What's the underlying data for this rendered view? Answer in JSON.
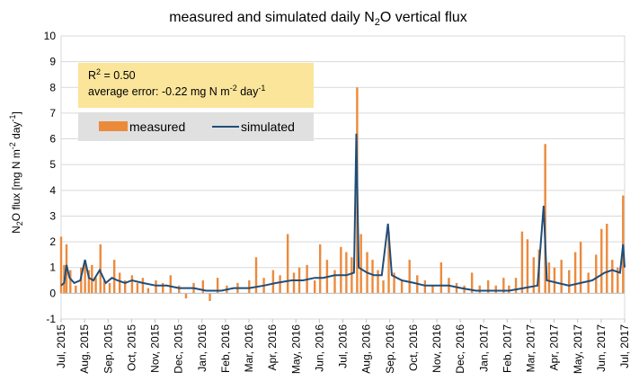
{
  "chart_data": {
    "type": "bar+line",
    "title": "measured and simulated daily N₂O vertical flux",
    "ylabel": "N₂O flux [mg N m⁻² day⁻¹]",
    "xlabel": "",
    "ylim": [
      -1,
      10
    ],
    "yticks": [
      -1,
      0,
      1,
      2,
      3,
      4,
      5,
      6,
      7,
      8,
      9,
      10
    ],
    "xlim": [
      "2015-07-01",
      "2017-07-01"
    ],
    "xtick_labels": [
      "Jul, 2015",
      "Aug, 2015",
      "Sep, 2015",
      "Oct, 2015",
      "Nov, 2015",
      "Dec, 2015",
      "Jan, 2016",
      "Feb, 2016",
      "Mar, 2016",
      "Apr, 2016",
      "May, 2016",
      "Jun, 2016",
      "Jul, 2016",
      "Aug, 2016",
      "Sep, 2016",
      "Oct, 2016",
      "Nov, 2016",
      "Dec, 2016",
      "Jan, 2017",
      "Feb, 2017",
      "Mar, 2017",
      "Apr, 2017",
      "May, 2017",
      "Jun, 2017",
      "Jul, 2017"
    ],
    "grid": "horizontal",
    "annotation": {
      "r2_label": "R² = 0.50",
      "error_label": "average error: -0.22 mg N m⁻² day⁻¹",
      "background": "#fbe59a"
    },
    "legend": {
      "placement": "top-left",
      "background": "#e0e0e0"
    },
    "series": [
      {
        "name": "measured",
        "kind": "bar",
        "color": "#ec8a3c",
        "points": [
          [
            "2015-07-01",
            2.2
          ],
          [
            "2015-07-05",
            1.1
          ],
          [
            "2015-07-08",
            1.9
          ],
          [
            "2015-07-13",
            0.9
          ],
          [
            "2015-07-20",
            0.3
          ],
          [
            "2015-07-27",
            1.0
          ],
          [
            "2015-08-01",
            1.2
          ],
          [
            "2015-08-06",
            0.9
          ],
          [
            "2015-08-10",
            1.1
          ],
          [
            "2015-08-15",
            0.6
          ],
          [
            "2015-08-21",
            1.9
          ],
          [
            "2015-08-26",
            0.5
          ],
          [
            "2015-09-02",
            0.4
          ],
          [
            "2015-09-08",
            1.3
          ],
          [
            "2015-09-15",
            0.8
          ],
          [
            "2015-09-22",
            0.5
          ],
          [
            "2015-10-01",
            0.7
          ],
          [
            "2015-10-08",
            0.4
          ],
          [
            "2015-10-15",
            0.6
          ],
          [
            "2015-10-22",
            0.2
          ],
          [
            "2015-11-01",
            0.5
          ],
          [
            "2015-11-10",
            0.4
          ],
          [
            "2015-11-20",
            0.7
          ],
          [
            "2015-12-01",
            0.3
          ],
          [
            "2015-12-10",
            -0.2
          ],
          [
            "2015-12-20",
            0.4
          ],
          [
            "2016-01-01",
            0.5
          ],
          [
            "2016-01-10",
            -0.3
          ],
          [
            "2016-01-20",
            0.6
          ],
          [
            "2016-02-01",
            0.3
          ],
          [
            "2016-02-15",
            0.4
          ],
          [
            "2016-03-01",
            0.5
          ],
          [
            "2016-03-10",
            1.4
          ],
          [
            "2016-03-20",
            0.6
          ],
          [
            "2016-04-01",
            0.9
          ],
          [
            "2016-04-10",
            0.7
          ],
          [
            "2016-04-20",
            2.3
          ],
          [
            "2016-04-28",
            0.8
          ],
          [
            "2016-05-05",
            1.0
          ],
          [
            "2016-05-15",
            1.1
          ],
          [
            "2016-05-25",
            0.5
          ],
          [
            "2016-06-01",
            1.9
          ],
          [
            "2016-06-10",
            1.3
          ],
          [
            "2016-06-20",
            0.9
          ],
          [
            "2016-06-28",
            1.8
          ],
          [
            "2016-07-05",
            1.6
          ],
          [
            "2016-07-12",
            1.4
          ],
          [
            "2016-07-19",
            8.0
          ],
          [
            "2016-07-24",
            2.3
          ],
          [
            "2016-08-01",
            1.6
          ],
          [
            "2016-08-08",
            1.3
          ],
          [
            "2016-08-15",
            0.9
          ],
          [
            "2016-08-22",
            0.5
          ],
          [
            "2016-08-29",
            2.4
          ],
          [
            "2016-09-05",
            0.8
          ],
          [
            "2016-09-15",
            0.5
          ],
          [
            "2016-09-25",
            1.3
          ],
          [
            "2016-10-05",
            0.7
          ],
          [
            "2016-10-15",
            0.5
          ],
          [
            "2016-10-25",
            0.3
          ],
          [
            "2016-11-05",
            1.2
          ],
          [
            "2016-11-15",
            0.6
          ],
          [
            "2016-11-25",
            0.4
          ],
          [
            "2016-12-05",
            0.3
          ],
          [
            "2016-12-15",
            0.8
          ],
          [
            "2016-12-25",
            0.3
          ],
          [
            "2017-01-05",
            0.5
          ],
          [
            "2017-01-15",
            0.3
          ],
          [
            "2017-01-25",
            0.6
          ],
          [
            "2017-02-01",
            0.3
          ],
          [
            "2017-02-10",
            0.6
          ],
          [
            "2017-02-18",
            2.4
          ],
          [
            "2017-02-25",
            2.1
          ],
          [
            "2017-03-05",
            1.4
          ],
          [
            "2017-03-12",
            1.7
          ],
          [
            "2017-03-20",
            5.8
          ],
          [
            "2017-03-25",
            1.2
          ],
          [
            "2017-04-01",
            1.0
          ],
          [
            "2017-04-10",
            1.3
          ],
          [
            "2017-04-20",
            0.9
          ],
          [
            "2017-04-28",
            1.6
          ],
          [
            "2017-05-05",
            2.0
          ],
          [
            "2017-05-15",
            0.8
          ],
          [
            "2017-05-25",
            1.5
          ],
          [
            "2017-06-01",
            2.5
          ],
          [
            "2017-06-08",
            2.7
          ],
          [
            "2017-06-15",
            1.3
          ],
          [
            "2017-06-22",
            1.0
          ],
          [
            "2017-06-29",
            3.8
          ]
        ]
      },
      {
        "name": "simulated",
        "kind": "line",
        "color": "#1f4e79",
        "points": [
          [
            "2015-07-01",
            0.3
          ],
          [
            "2015-07-05",
            0.4
          ],
          [
            "2015-07-08",
            1.1
          ],
          [
            "2015-07-12",
            0.6
          ],
          [
            "2015-07-18",
            0.4
          ],
          [
            "2015-07-26",
            0.5
          ],
          [
            "2015-08-01",
            1.3
          ],
          [
            "2015-08-06",
            0.6
          ],
          [
            "2015-08-12",
            0.5
          ],
          [
            "2015-08-20",
            0.9
          ],
          [
            "2015-08-28",
            0.4
          ],
          [
            "2015-09-05",
            0.6
          ],
          [
            "2015-09-12",
            0.5
          ],
          [
            "2015-09-22",
            0.4
          ],
          [
            "2015-10-01",
            0.5
          ],
          [
            "2015-10-15",
            0.4
          ],
          [
            "2015-11-01",
            0.3
          ],
          [
            "2015-11-15",
            0.3
          ],
          [
            "2015-12-01",
            0.2
          ],
          [
            "2015-12-20",
            0.2
          ],
          [
            "2016-01-05",
            0.1
          ],
          [
            "2016-01-25",
            0.1
          ],
          [
            "2016-02-10",
            0.2
          ],
          [
            "2016-03-01",
            0.2
          ],
          [
            "2016-03-20",
            0.3
          ],
          [
            "2016-04-05",
            0.4
          ],
          [
            "2016-04-25",
            0.5
          ],
          [
            "2016-05-10",
            0.5
          ],
          [
            "2016-05-25",
            0.6
          ],
          [
            "2016-06-05",
            0.6
          ],
          [
            "2016-06-20",
            0.7
          ],
          [
            "2016-07-05",
            0.7
          ],
          [
            "2016-07-15",
            0.8
          ],
          [
            "2016-07-18",
            6.2
          ],
          [
            "2016-07-21",
            1.0
          ],
          [
            "2016-08-01",
            0.8
          ],
          [
            "2016-08-10",
            0.7
          ],
          [
            "2016-08-20",
            0.7
          ],
          [
            "2016-08-28",
            2.7
          ],
          [
            "2016-09-02",
            0.7
          ],
          [
            "2016-09-15",
            0.5
          ],
          [
            "2016-10-01",
            0.4
          ],
          [
            "2016-10-15",
            0.3
          ],
          [
            "2016-11-01",
            0.3
          ],
          [
            "2016-11-15",
            0.3
          ],
          [
            "2016-12-01",
            0.2
          ],
          [
            "2016-12-20",
            0.1
          ],
          [
            "2017-01-10",
            0.1
          ],
          [
            "2017-02-01",
            0.1
          ],
          [
            "2017-02-20",
            0.2
          ],
          [
            "2017-03-10",
            0.3
          ],
          [
            "2017-03-18",
            3.4
          ],
          [
            "2017-03-22",
            0.5
          ],
          [
            "2017-04-05",
            0.4
          ],
          [
            "2017-04-20",
            0.3
          ],
          [
            "2017-05-05",
            0.4
          ],
          [
            "2017-05-20",
            0.5
          ],
          [
            "2017-06-05",
            0.8
          ],
          [
            "2017-06-15",
            0.9
          ],
          [
            "2017-06-25",
            0.8
          ],
          [
            "2017-06-29",
            1.9
          ],
          [
            "2017-07-01",
            1.0
          ]
        ]
      }
    ]
  }
}
